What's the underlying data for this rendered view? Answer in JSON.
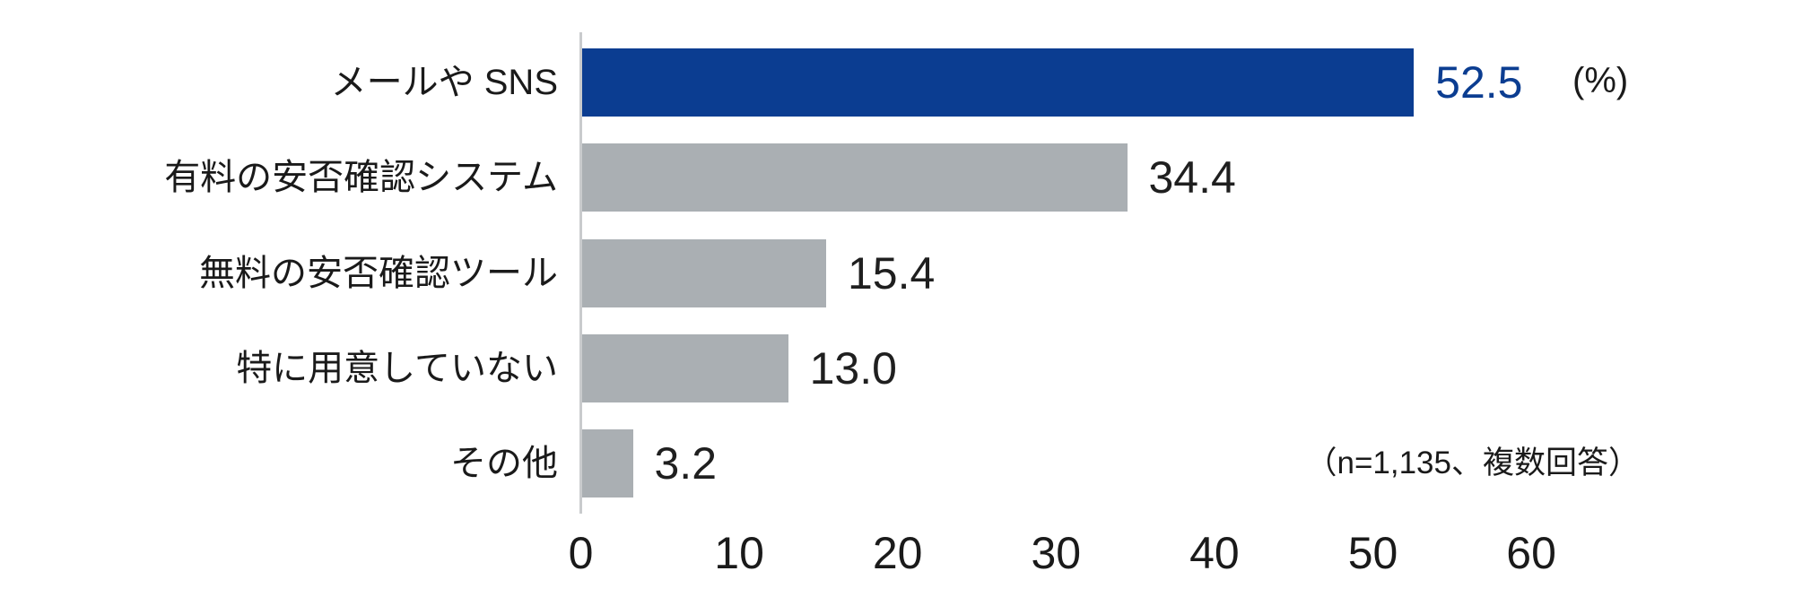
{
  "chart_data": {
    "type": "bar",
    "orientation": "horizontal",
    "title": "",
    "unit_label": "(%)",
    "note": "（n=1,135、複数回答）",
    "categories": [
      "メールや SNS",
      "有料の安否確認システム",
      "無料の安否確認ツール",
      "特に用意していない",
      "その他"
    ],
    "values": [
      52.5,
      34.4,
      15.4,
      13.0,
      3.2
    ],
    "value_labels": [
      "52.5",
      "34.4",
      "15.4",
      "13.0",
      "3.2"
    ],
    "x_ticks": [
      0,
      10,
      20,
      30,
      40,
      50,
      60
    ],
    "xlim": [
      0,
      60
    ],
    "grid": false,
    "legend": "none",
    "highlight_index": 0,
    "colors": {
      "highlight_bar": "#0b3d91",
      "default_bar": "#aaafb3",
      "highlight_value_text": "#0b3d91",
      "value_text": "#1f1f1f",
      "axis_line": "#c9cbcd"
    }
  }
}
